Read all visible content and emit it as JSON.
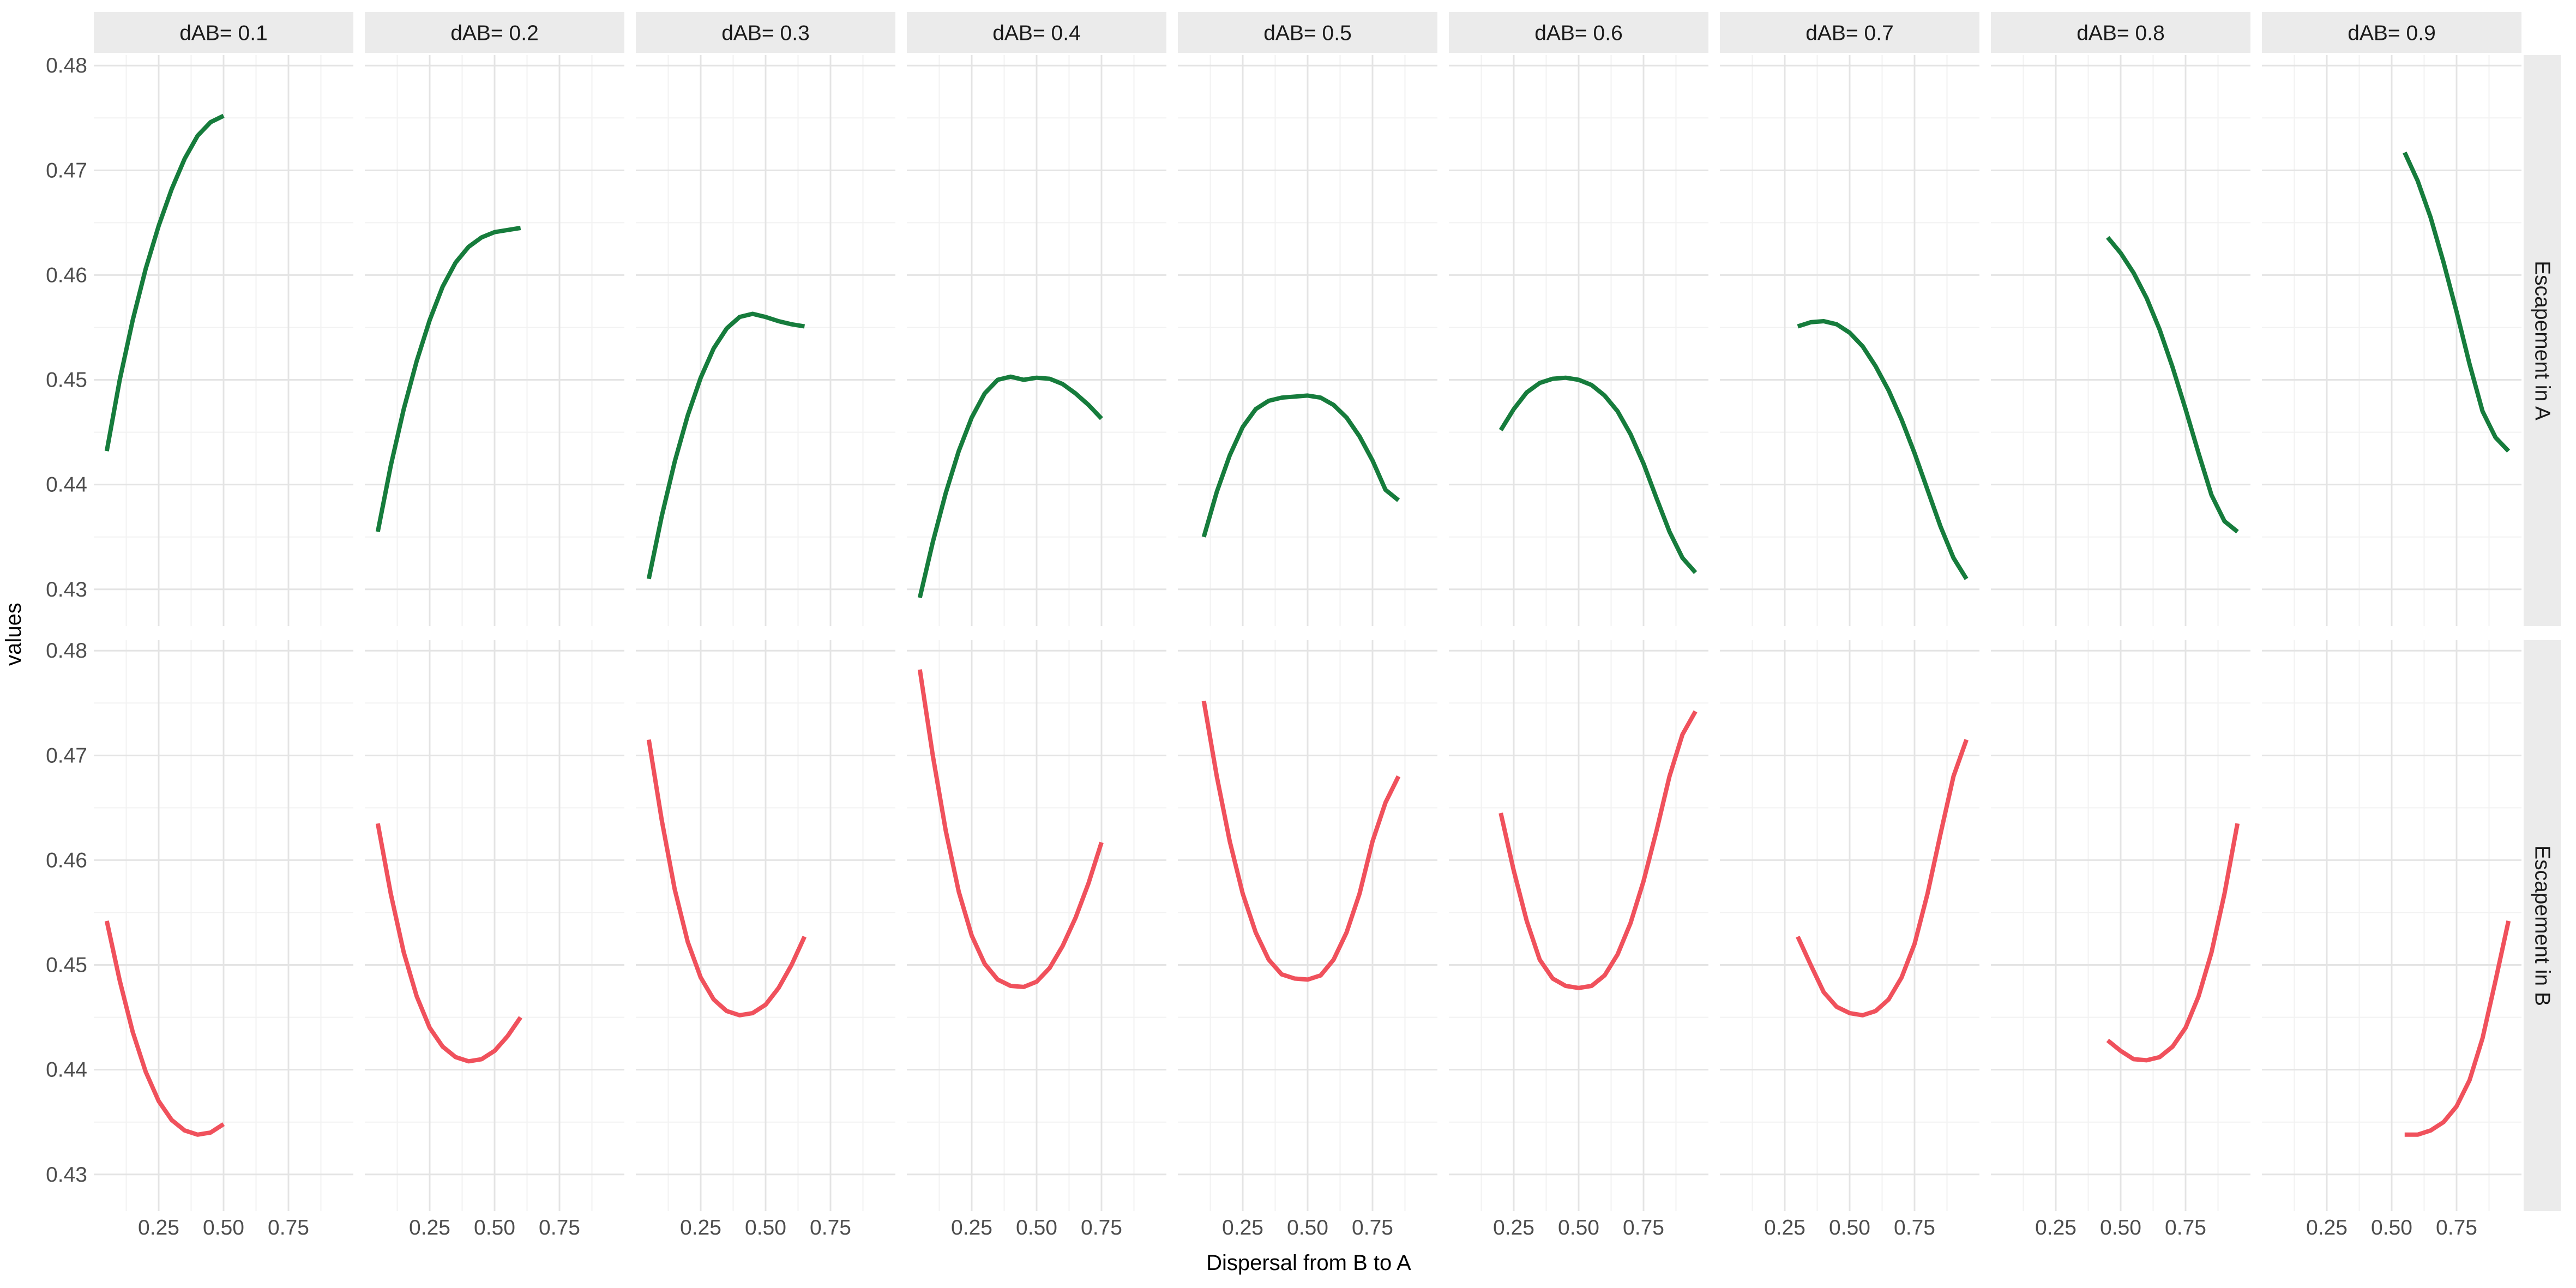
{
  "chart_data": {
    "type": "line",
    "layout": "facet_grid",
    "xlabel": "Dispersal from B to A",
    "ylabel": "values",
    "xlim": [
      0,
      1
    ],
    "ylim": [
      0.4265,
      0.481
    ],
    "x_ticks": [
      0.25,
      0.5,
      0.75
    ],
    "x_tick_labels": [
      "0.25",
      "0.50",
      "0.75"
    ],
    "y_ticks": [
      0.43,
      0.44,
      0.45,
      0.46,
      0.47,
      0.48
    ],
    "y_tick_labels": [
      "0.43",
      "0.44",
      "0.45",
      "0.46",
      "0.47",
      "0.48"
    ],
    "grid": true,
    "column_facets": [
      "dAB=  0.1",
      "dAB=  0.2",
      "dAB=  0.3",
      "dAB=  0.4",
      "dAB=  0.5",
      "dAB=  0.6",
      "dAB=  0.7",
      "dAB=  0.8",
      "dAB=  0.9"
    ],
    "row_facets": [
      "Escapement in A",
      "Escapement in B"
    ],
    "colors": {
      "Escapement in A": "#167c3c",
      "Escapement in B": "#f0515c"
    },
    "series": [
      {
        "row": "Escapement in A",
        "column": "dAB=  0.1",
        "x": [
          0.05,
          0.1,
          0.15,
          0.2,
          0.25,
          0.3,
          0.35,
          0.4,
          0.45,
          0.5
        ],
        "y": [
          0.4432,
          0.45,
          0.4557,
          0.4606,
          0.4647,
          0.4682,
          0.4711,
          0.4733,
          0.4746,
          0.4752
        ]
      },
      {
        "row": "Escapement in A",
        "column": "dAB=  0.2",
        "x": [
          0.05,
          0.1,
          0.15,
          0.2,
          0.25,
          0.3,
          0.35,
          0.4,
          0.45,
          0.5,
          0.55,
          0.6
        ],
        "y": [
          0.4355,
          0.4418,
          0.4472,
          0.4518,
          0.4557,
          0.4589,
          0.4612,
          0.4627,
          0.4636,
          0.4641,
          0.4643,
          0.4645
        ]
      },
      {
        "row": "Escapement in A",
        "column": "dAB=  0.3",
        "x": [
          0.05,
          0.1,
          0.15,
          0.2,
          0.25,
          0.3,
          0.35,
          0.4,
          0.45,
          0.5,
          0.55,
          0.6,
          0.65
        ],
        "y": [
          0.431,
          0.437,
          0.4422,
          0.4466,
          0.4502,
          0.453,
          0.4549,
          0.456,
          0.4563,
          0.456,
          0.4556,
          0.4553,
          0.4551
        ]
      },
      {
        "row": "Escapement in A",
        "column": "dAB=  0.4",
        "x": [
          0.05,
          0.1,
          0.15,
          0.2,
          0.25,
          0.3,
          0.35,
          0.4,
          0.45,
          0.5,
          0.55,
          0.6,
          0.65,
          0.7,
          0.75
        ],
        "y": [
          0.4292,
          0.4345,
          0.4392,
          0.4432,
          0.4464,
          0.4487,
          0.45,
          0.4503,
          0.45,
          0.4502,
          0.4501,
          0.4496,
          0.4487,
          0.4476,
          0.4463
        ]
      },
      {
        "row": "Escapement in A",
        "column": "dAB=  0.5",
        "x": [
          0.1,
          0.15,
          0.2,
          0.25,
          0.3,
          0.35,
          0.4,
          0.45,
          0.5,
          0.55,
          0.6,
          0.65,
          0.7,
          0.75,
          0.8,
          0.85
        ],
        "y": [
          0.435,
          0.4393,
          0.4428,
          0.4455,
          0.4472,
          0.448,
          0.4483,
          0.4484,
          0.4485,
          0.4483,
          0.4476,
          0.4464,
          0.4446,
          0.4423,
          0.4395,
          0.4385
        ]
      },
      {
        "row": "Escapement in A",
        "column": "dAB=  0.6",
        "x": [
          0.2,
          0.25,
          0.3,
          0.35,
          0.4,
          0.45,
          0.5,
          0.55,
          0.6,
          0.65,
          0.7,
          0.75,
          0.8,
          0.85,
          0.9,
          0.95
        ],
        "y": [
          0.4452,
          0.4472,
          0.4488,
          0.4497,
          0.4501,
          0.4502,
          0.45,
          0.4495,
          0.4485,
          0.447,
          0.4448,
          0.442,
          0.4387,
          0.4355,
          0.433,
          0.4316
        ]
      },
      {
        "row": "Escapement in A",
        "column": "dAB=  0.7",
        "x": [
          0.3,
          0.35,
          0.4,
          0.45,
          0.5,
          0.55,
          0.6,
          0.65,
          0.7,
          0.75,
          0.8,
          0.85,
          0.9,
          0.95
        ],
        "y": [
          0.4551,
          0.4555,
          0.4556,
          0.4553,
          0.4545,
          0.4532,
          0.4513,
          0.449,
          0.4462,
          0.443,
          0.4395,
          0.436,
          0.433,
          0.431
        ]
      },
      {
        "row": "Escapement in A",
        "column": "dAB=  0.8",
        "x": [
          0.45,
          0.5,
          0.55,
          0.6,
          0.65,
          0.7,
          0.75,
          0.8,
          0.85,
          0.9,
          0.95
        ],
        "y": [
          0.4636,
          0.4621,
          0.4602,
          0.4578,
          0.4548,
          0.4512,
          0.4472,
          0.443,
          0.439,
          0.4365,
          0.4355
        ]
      },
      {
        "row": "Escapement in A",
        "column": "dAB=  0.9",
        "x": [
          0.55,
          0.6,
          0.65,
          0.7,
          0.75,
          0.8,
          0.85,
          0.9,
          0.95
        ],
        "y": [
          0.4717,
          0.469,
          0.4655,
          0.4612,
          0.4565,
          0.4515,
          0.447,
          0.4445,
          0.4432
        ]
      },
      {
        "row": "Escapement in B",
        "column": "dAB=  0.1",
        "x": [
          0.05,
          0.1,
          0.15,
          0.2,
          0.25,
          0.3,
          0.35,
          0.4,
          0.45,
          0.5
        ],
        "y": [
          0.4542,
          0.4485,
          0.4436,
          0.4398,
          0.437,
          0.4352,
          0.4342,
          0.4338,
          0.434,
          0.4348
        ]
      },
      {
        "row": "Escapement in B",
        "column": "dAB=  0.2",
        "x": [
          0.05,
          0.1,
          0.15,
          0.2,
          0.25,
          0.3,
          0.35,
          0.4,
          0.45,
          0.5,
          0.55,
          0.6
        ],
        "y": [
          0.4635,
          0.4568,
          0.4512,
          0.447,
          0.444,
          0.4422,
          0.4412,
          0.4408,
          0.441,
          0.4418,
          0.4432,
          0.445
        ]
      },
      {
        "row": "Escapement in B",
        "column": "dAB=  0.3",
        "x": [
          0.05,
          0.1,
          0.15,
          0.2,
          0.25,
          0.3,
          0.35,
          0.4,
          0.45,
          0.5,
          0.55,
          0.6,
          0.65
        ],
        "y": [
          0.4715,
          0.4638,
          0.4572,
          0.4522,
          0.4488,
          0.4467,
          0.4456,
          0.4452,
          0.4454,
          0.4462,
          0.4478,
          0.45,
          0.4527
        ]
      },
      {
        "row": "Escapement in B",
        "column": "dAB=  0.4",
        "x": [
          0.05,
          0.1,
          0.15,
          0.2,
          0.25,
          0.3,
          0.35,
          0.4,
          0.45,
          0.5,
          0.55,
          0.6,
          0.65,
          0.7,
          0.75
        ],
        "y": [
          0.4782,
          0.47,
          0.4628,
          0.457,
          0.4528,
          0.4501,
          0.4486,
          0.448,
          0.4479,
          0.4484,
          0.4497,
          0.4518,
          0.4545,
          0.4578,
          0.4617
        ]
      },
      {
        "row": "Escapement in B",
        "column": "dAB=  0.5",
        "x": [
          0.1,
          0.15,
          0.2,
          0.25,
          0.3,
          0.35,
          0.4,
          0.45,
          0.5,
          0.55,
          0.6,
          0.65,
          0.7,
          0.75,
          0.8,
          0.85
        ],
        "y": [
          0.4752,
          0.468,
          0.4618,
          0.4568,
          0.4531,
          0.4505,
          0.4491,
          0.4487,
          0.4486,
          0.449,
          0.4505,
          0.4531,
          0.4568,
          0.4618,
          0.4655,
          0.468
        ]
      },
      {
        "row": "Escapement in B",
        "column": "dAB=  0.6",
        "x": [
          0.2,
          0.25,
          0.3,
          0.35,
          0.4,
          0.45,
          0.5,
          0.55,
          0.6,
          0.65,
          0.7,
          0.75,
          0.8,
          0.85,
          0.9,
          0.95
        ],
        "y": [
          0.4645,
          0.459,
          0.4542,
          0.4505,
          0.4487,
          0.448,
          0.4478,
          0.448,
          0.449,
          0.451,
          0.454,
          0.458,
          0.4628,
          0.468,
          0.472,
          0.4742
        ]
      },
      {
        "row": "Escapement in B",
        "column": "dAB=  0.7",
        "x": [
          0.3,
          0.35,
          0.4,
          0.45,
          0.5,
          0.55,
          0.6,
          0.65,
          0.7,
          0.75,
          0.8,
          0.85,
          0.9,
          0.95
        ],
        "y": [
          0.4527,
          0.45,
          0.4474,
          0.446,
          0.4454,
          0.4452,
          0.4456,
          0.4467,
          0.4488,
          0.452,
          0.4568,
          0.4625,
          0.468,
          0.4715
        ]
      },
      {
        "row": "Escapement in B",
        "column": "dAB=  0.8",
        "x": [
          0.45,
          0.5,
          0.55,
          0.6,
          0.65,
          0.7,
          0.75,
          0.8,
          0.85,
          0.9,
          0.95
        ],
        "y": [
          0.4428,
          0.4418,
          0.441,
          0.4409,
          0.4412,
          0.4422,
          0.444,
          0.447,
          0.4512,
          0.4568,
          0.4635
        ]
      },
      {
        "row": "Escapement in B",
        "column": "dAB=  0.9",
        "x": [
          0.55,
          0.6,
          0.65,
          0.7,
          0.75,
          0.8,
          0.85,
          0.9,
          0.95
        ],
        "y": [
          0.4338,
          0.4338,
          0.4342,
          0.435,
          0.4365,
          0.439,
          0.443,
          0.4485,
          0.4542
        ]
      }
    ]
  }
}
